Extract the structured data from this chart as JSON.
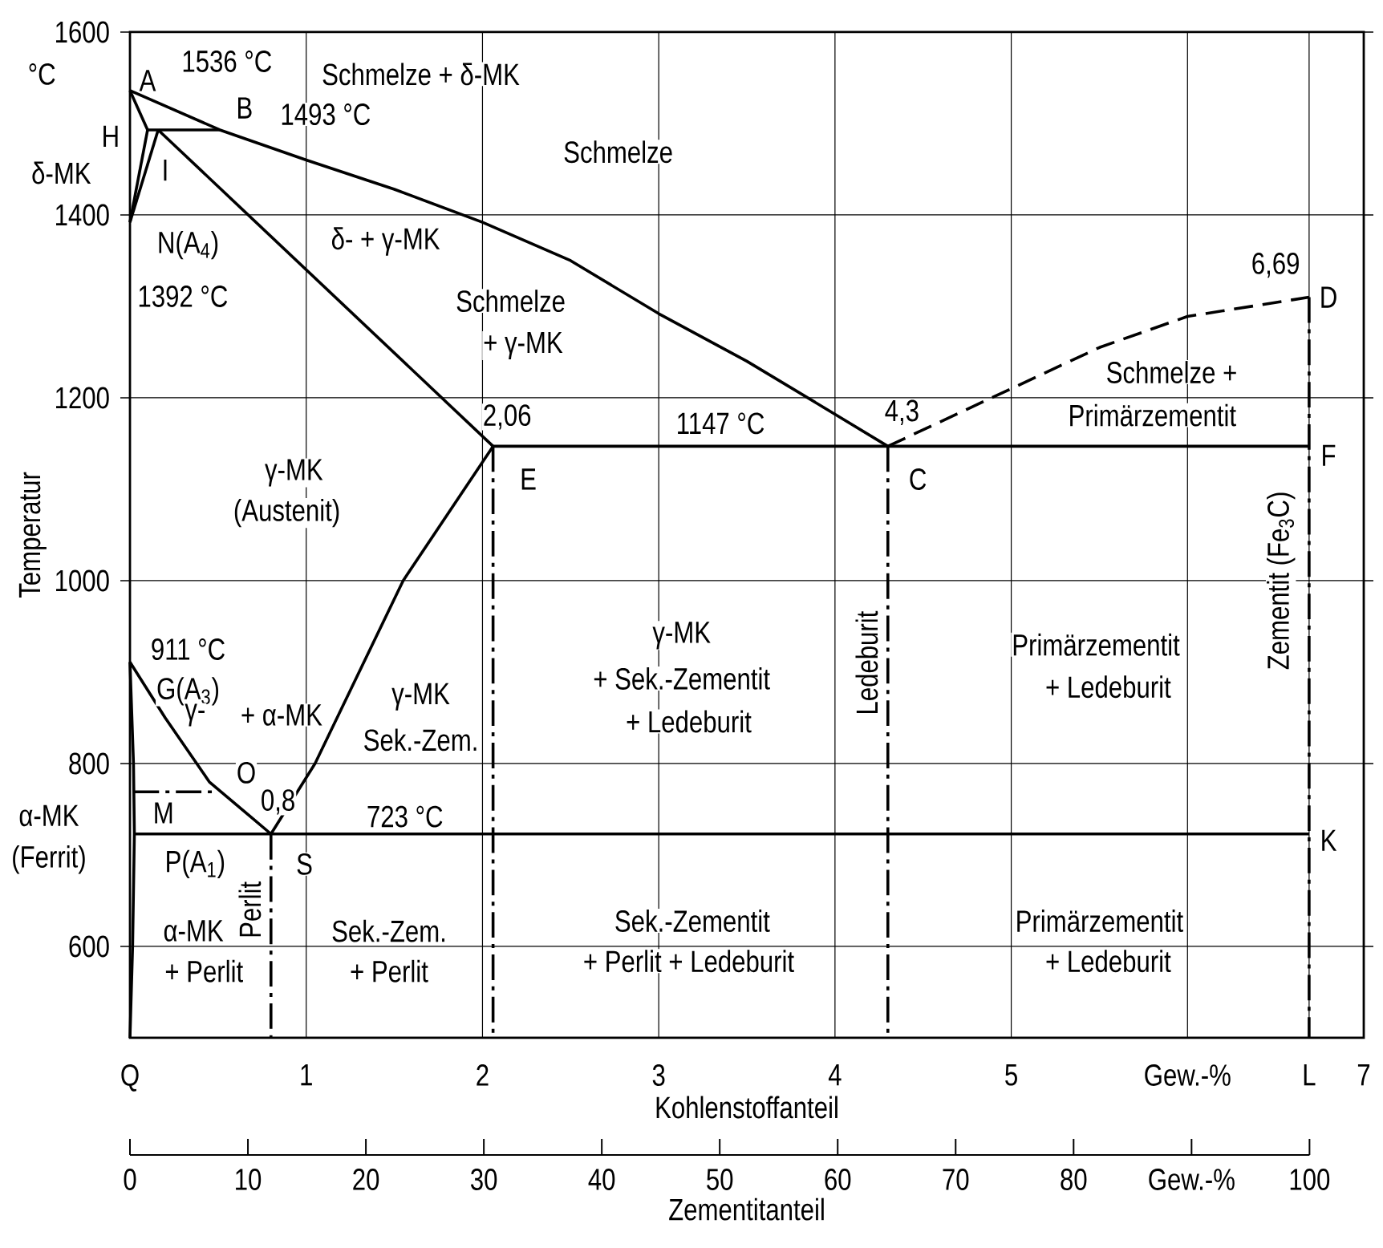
{
  "chart_data": {
    "type": "line",
    "xlabel": "Kohlenstoffanteil",
    "ylabel": "Temperatur",
    "x2label": "Zementitanteil",
    "xlim": [
      0,
      7
    ],
    "ylim": [
      500,
      1600
    ],
    "x2lim": [
      0,
      104.6
    ],
    "xticks": [
      {
        "value": 0,
        "label": "Q"
      },
      1,
      2,
      3,
      4,
      5,
      {
        "value": 6,
        "label": "Gew.-%"
      },
      {
        "value": 6.69,
        "label": "L"
      },
      7
    ],
    "yticks": [
      600,
      800,
      1000,
      1200,
      1400,
      1600
    ],
    "x2ticks": [
      0,
      10,
      20,
      30,
      40,
      50,
      60,
      70,
      80,
      {
        "value": 90,
        "label": "Gew.-%"
      },
      100
    ],
    "grid": true,
    "marker": "none",
    "series": [
      {
        "color": "#000000",
        "line_style": "solid",
        "x": [
          0,
          0.51,
          1,
          1.5,
          2,
          2.5,
          3,
          3.5,
          4,
          4.3
        ],
        "values": [
          1536,
          1493,
          1460,
          1428,
          1392,
          1350,
          1292,
          1240,
          1182,
          1147
        ]
      },
      {
        "color": "#000000",
        "line_style": "solid",
        "x": [
          0,
          0.1
        ],
        "values": [
          1536,
          1493
        ]
      },
      {
        "color": "#000000",
        "line_style": "solid",
        "x": [
          0.1,
          0.51
        ],
        "values": [
          1493,
          1493
        ]
      },
      {
        "color": "#000000",
        "line_style": "solid",
        "x": [
          0,
          0.1
        ],
        "values": [
          1392,
          1493
        ]
      },
      {
        "color": "#000000",
        "line_style": "solid",
        "x": [
          0,
          0.16
        ],
        "values": [
          1392,
          1493
        ]
      },
      {
        "color": "#000000",
        "line_style": "solid",
        "x": [
          0.16,
          2.06
        ],
        "values": [
          1493,
          1147
        ]
      },
      {
        "color": "#000000",
        "line_style": "solid",
        "x": [
          2.06,
          6.69
        ],
        "values": [
          1147,
          1147
        ]
      },
      {
        "color": "#000000",
        "line_style": "dashed",
        "x": [
          4.3,
          5,
          5.5,
          6,
          6.69
        ],
        "values": [
          1147,
          1210,
          1255,
          1289,
          1310
        ]
      },
      {
        "color": "#000000",
        "line_style": "solid",
        "x": [
          0,
          0.02,
          0.025,
          0.015,
          0
        ],
        "values": [
          911,
          800,
          723,
          600,
          500
        ]
      },
      {
        "color": "#000000",
        "line_style": "solid",
        "x": [
          0,
          0.2,
          0.45,
          0.8
        ],
        "values": [
          911,
          850,
          780,
          723
        ]
      },
      {
        "color": "#000000",
        "line_style": "solid",
        "x": [
          0.8,
          1.05,
          1.55,
          2.06
        ],
        "values": [
          723,
          800,
          1000,
          1147
        ]
      },
      {
        "color": "#000000",
        "line_style": "solid",
        "x": [
          0.025,
          6.69
        ],
        "values": [
          723,
          723
        ]
      },
      {
        "color": "#000000",
        "line_style": "dashdot",
        "x": [
          0.02,
          0.5
        ],
        "values": [
          769,
          769
        ]
      },
      {
        "color": "#000000",
        "line_style": "dashdot",
        "x": [
          0.8,
          0.8
        ],
        "values": [
          723,
          500
        ]
      },
      {
        "color": "#000000",
        "line_style": "dashdot",
        "x": [
          2.06,
          2.06
        ],
        "values": [
          1147,
          500
        ]
      },
      {
        "color": "#000000",
        "line_style": "dashdot",
        "x": [
          4.3,
          4.3
        ],
        "values": [
          1147,
          500
        ]
      },
      {
        "color": "#000000",
        "line_style": "dashdot",
        "x": [
          6.69,
          6.69
        ],
        "values": [
          1310,
          500
        ]
      }
    ],
    "annotations": [
      "°C",
      "A",
      "1536 °C",
      "Schmelze + δ-MK",
      "B",
      "1493 °C",
      "H",
      "δ-MK",
      "I",
      "N(A$_{4}$)",
      "1392 °C",
      "δ- + γ-MK",
      "Schmelze",
      "Schmelze",
      "+ γ-MK",
      "2,06",
      "1147 °C",
      "4,3",
      "6,69",
      "D",
      "Schmelze +",
      "Primärzementit",
      "F",
      "E",
      "C",
      "γ-MK",
      "(Austenit)",
      "911 °C",
      "G(A$_{3}$)",
      "γ-",
      "+ α-MK",
      "γ-MK",
      "Sek.-Zem.",
      "O",
      "0,8",
      "723 °C",
      "α-MK",
      "(Ferrit)",
      "M",
      "P(A$_{1}$)",
      "S",
      "Perlit",
      "α-MK",
      "+ Perlit",
      "Sek.-Zem.",
      "+ Perlit",
      "γ-MK",
      "+ Sek.-Zementit",
      "+ Ledeburit",
      "Ledeburit",
      "Primärzementit",
      "+ Ledeburit",
      "Zementit (Fe$_{3}$C)",
      "K",
      "Sek.-Zementit",
      "+ Perlit + Ledeburit",
      "Primärzementit",
      "+ Ledeburit"
    ]
  }
}
